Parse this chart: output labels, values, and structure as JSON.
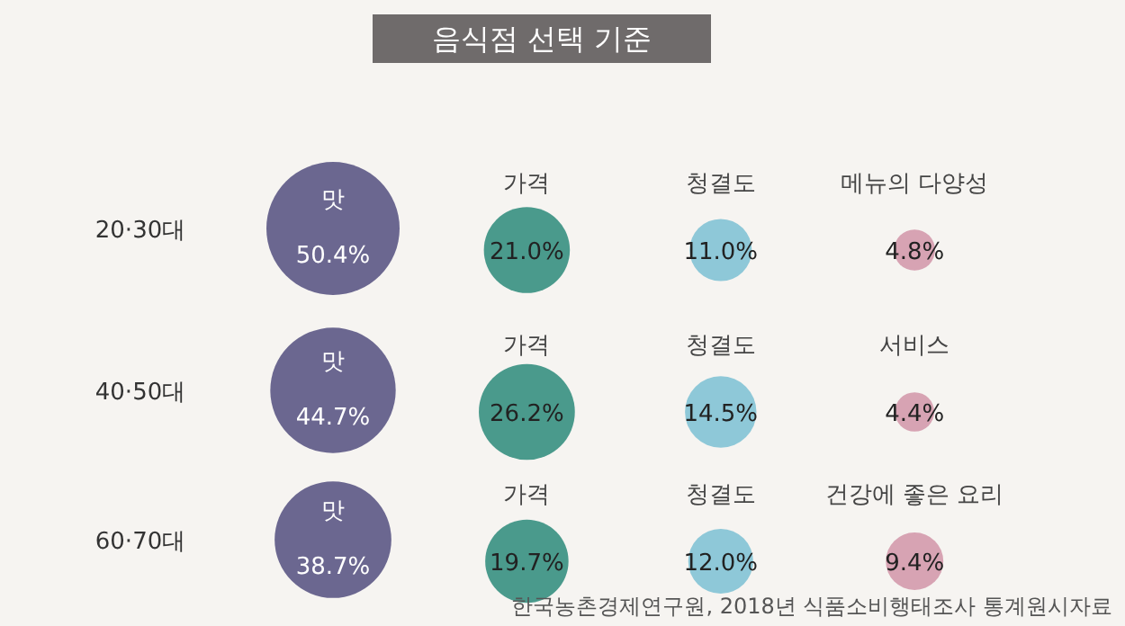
{
  "chart_data": {
    "type": "other",
    "title": "음식점 선택 기준",
    "categories": [
      "20·30대",
      "40·50대",
      "60·70대"
    ],
    "series": [
      {
        "color": "#6b6790",
        "values": [
          50.4,
          44.7,
          38.7
        ],
        "value_labels": [
          "50.4%",
          "44.7%",
          "38.7%"
        ]
      },
      {
        "color": "#4a9a8c",
        "values": [
          21.0,
          26.2,
          19.7
        ],
        "value_labels": [
          "21.0%",
          "26.2%",
          "19.7%"
        ]
      },
      {
        "color": "#8ec8d8",
        "values": [
          11.0,
          14.5,
          12.0
        ],
        "value_labels": [
          "11.0%",
          "14.5%",
          "12.0%"
        ]
      },
      {
        "color": "#d7a3b3",
        "values": [
          4.8,
          4.4,
          9.4
        ],
        "value_labels": [
          "4.8%",
          "4.4%",
          "9.4%"
        ]
      }
    ],
    "annotations": [
      {
        "text": "맛",
        "x": "20·30대"
      },
      {
        "text": "가격",
        "x": "20·30대"
      },
      {
        "text": "청결도",
        "x": "20·30대"
      },
      {
        "text": "메뉴의 다양성",
        "x": "20·30대"
      },
      {
        "text": "맛",
        "x": "40·50대"
      },
      {
        "text": "가격",
        "x": "40·50대"
      },
      {
        "text": "청결도",
        "x": "40·50대"
      },
      {
        "text": "서비스",
        "x": "40·50대"
      },
      {
        "text": "맛",
        "x": "60·70대"
      },
      {
        "text": "가격",
        "x": "60·70대"
      },
      {
        "text": "청결도",
        "x": "60·70대"
      },
      {
        "text": "건강에 좋은 요리",
        "x": "60·70대"
      },
      "한국농촌경제연구원, 2018년 식품소비행태조사 통계원시자료"
    ]
  }
}
